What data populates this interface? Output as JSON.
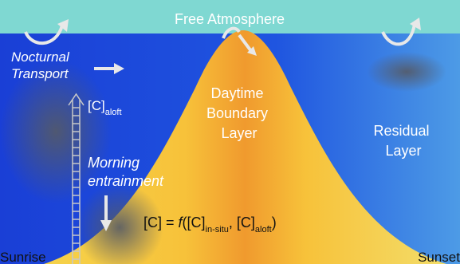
{
  "labels": {
    "free_atmosphere": "Free Atmosphere",
    "nocturnal_transport": [
      "Nocturnal",
      "Transport"
    ],
    "c_aloft": {
      "base": "[C]",
      "sub": "aloft"
    },
    "daytime_boundary_layer": [
      "Daytime",
      "Boundary",
      "Layer"
    ],
    "residual_layer": [
      "Residual",
      "Layer"
    ],
    "morning_entrainment": [
      "Morning",
      "entrainment"
    ],
    "formula": {
      "lhs": "[C] = ",
      "f": "f",
      "open": "([C]",
      "sub1": "in-situ",
      "mid": ", [C]",
      "sub2": "aloft",
      "close": ")"
    },
    "sunrise": "Sunrise",
    "sunset": "Sunset"
  }
}
